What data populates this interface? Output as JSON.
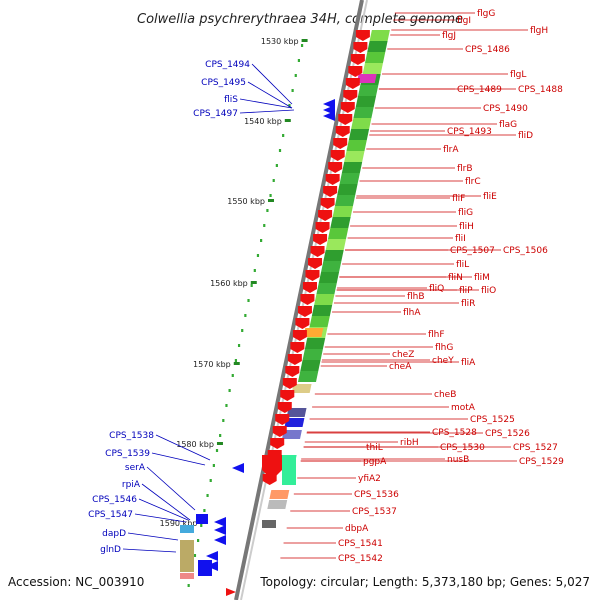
{
  "title": "Colwellia psychrerythraea 34H, complete genome",
  "accession": "Accession: NC_003910",
  "topology": "Topology: circular; Length: 5,373,180 bp; Genes: 5,027",
  "kbp_ticks": [
    {
      "label": "1530 kbp"
    },
    {
      "label": "1540 kbp"
    },
    {
      "label": "1550 kbp"
    },
    {
      "label": "1560 kbp"
    },
    {
      "label": "1570 kbp"
    },
    {
      "label": "1580 kbp"
    },
    {
      "label": "1590 kbp"
    }
  ],
  "right_genes": [
    "flgG",
    "flgH",
    "flgI",
    "flgJ",
    "CPS_1486",
    "flgL",
    "CPS_1489",
    "CPS_1488",
    "CPS_1490",
    "flaG",
    "CPS_1493",
    "fliD",
    "flrA",
    "flrB",
    "flrC",
    "fliE",
    "fliF",
    "fliG",
    "fliH",
    "fliI",
    "CPS_1507",
    "CPS_1506",
    "fliL",
    "fliN",
    "fliM",
    "fliQ",
    "fliP",
    "fliO",
    "flhB",
    "fliR",
    "flhA",
    "flhF",
    "flhG",
    "cheZ",
    "cheY",
    "fliA",
    "cheA",
    "cheB",
    "motA",
    "CPS_1525",
    "CPS_1528",
    "CPS_1526",
    "ribH",
    "CPS_1527",
    "thiL",
    "CPS_1530",
    "nusB",
    "CPS_1529",
    "pgpA",
    "yfiA2",
    "CPS_1536",
    "CPS_1537",
    "dbpA",
    "CPS_1541",
    "CPS_1542"
  ],
  "left_genes": [
    "CPS_1494",
    "CPS_1495",
    "fliS",
    "CPS_1497",
    "CPS_1538",
    "CPS_1539",
    "serA",
    "rpiA",
    "CPS_1546",
    "CPS_1547",
    "dapD",
    "glnD"
  ],
  "colors": {
    "forward_cds": "#ee1111",
    "reverse_cds": "#1111ee",
    "backbone": "#888888",
    "cog_dark_green": "#2f9e2f",
    "cog_light_green": "#7fdc4a"
  }
}
